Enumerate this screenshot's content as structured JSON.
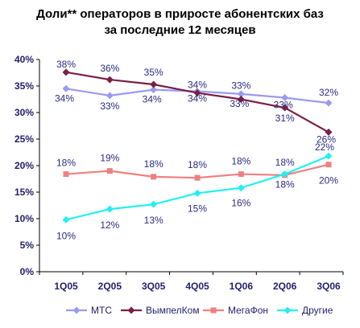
{
  "chart_data": {
    "type": "line",
    "title_line1": "Доли** операторов в приросте абонентских баз",
    "title_line2": "за последние 12 месяцев",
    "categories": [
      "1Q05",
      "2Q05",
      "3Q05",
      "4Q05",
      "1Q06",
      "2Q06",
      "3Q06"
    ],
    "y_ticks": [
      "0%",
      "5%",
      "10%",
      "15%",
      "20%",
      "25%",
      "30%",
      "35%",
      "40%"
    ],
    "ylim": [
      0,
      40
    ],
    "grid": false,
    "legend_position": "bottom",
    "series": [
      {
        "name": "МТС",
        "values": [
          34.5,
          33.2,
          34.3,
          34.0,
          33.5,
          32.8,
          31.8
        ],
        "labels": [
          "34%",
          "33%",
          "34%",
          "34%",
          "33%",
          "33%",
          "32%"
        ],
        "color": "#9a9af0",
        "marker": "diamond"
      },
      {
        "name": "ВымпелКом",
        "values": [
          37.6,
          36.2,
          35.3,
          33.7,
          32.5,
          30.9,
          26.3
        ],
        "labels": [
          "38%",
          "36%",
          "35%",
          "34%",
          "33%",
          "31%",
          "26%"
        ],
        "color": "#7a1f45",
        "marker": "diamond"
      },
      {
        "name": "МегаФон",
        "values": [
          18.4,
          19.0,
          17.9,
          17.7,
          18.4,
          18.2,
          20.2
        ],
        "labels": [
          "18%",
          "19%",
          "18%",
          "18%",
          "18%",
          "18%",
          "20%"
        ],
        "color": "#f08080",
        "marker": "square"
      },
      {
        "name": "Другие",
        "values": [
          9.8,
          11.8,
          12.7,
          14.8,
          15.8,
          18.4,
          21.8
        ],
        "labels": [
          "10%",
          "12%",
          "13%",
          "15%",
          "16%",
          "18%",
          "22%"
        ],
        "color": "#22f0f0",
        "marker": "diamond"
      }
    ]
  }
}
